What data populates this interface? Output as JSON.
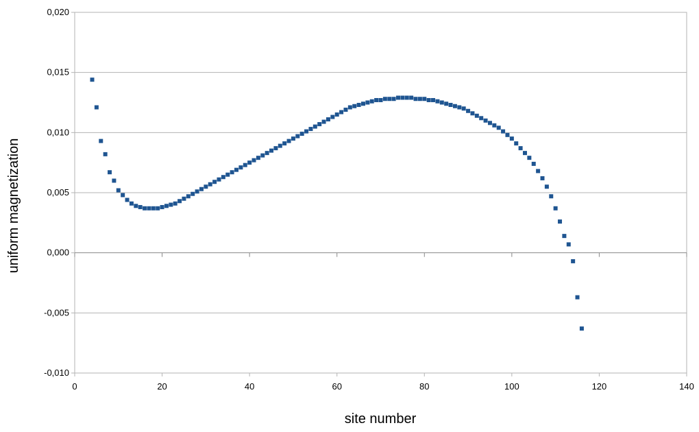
{
  "chart_data": {
    "type": "scatter",
    "title": "",
    "xlabel": "site number",
    "ylabel": "uniform magnetization",
    "xlim": [
      0,
      140
    ],
    "ylim": [
      -0.01,
      0.02
    ],
    "x_ticks": [
      "0",
      "20",
      "40",
      "60",
      "80",
      "100",
      "120",
      "140"
    ],
    "y_ticks": [
      "-0,010",
      "-0,005",
      "0,000",
      "0,005",
      "0,010",
      "0,015",
      "0,020"
    ],
    "grid": "horizontal",
    "legend": "none",
    "marker_color": "#1f5591",
    "series": [
      {
        "x": [
          4,
          5,
          6,
          7,
          8,
          9,
          10,
          11,
          12,
          13,
          14,
          15,
          16,
          17,
          18,
          19,
          20,
          21,
          22,
          23,
          24,
          25,
          26,
          27,
          28,
          29,
          30,
          31,
          32,
          33,
          34,
          35,
          36,
          37,
          38,
          39,
          40,
          41,
          42,
          43,
          44,
          45,
          46,
          47,
          48,
          49,
          50,
          51,
          52,
          53,
          54,
          55,
          56,
          57,
          58,
          59,
          60,
          61,
          62,
          63,
          64,
          65,
          66,
          67,
          68,
          69,
          70,
          71,
          72,
          73,
          74,
          75,
          76,
          77,
          78,
          79,
          80,
          81,
          82,
          83,
          84,
          85,
          86,
          87,
          88,
          89,
          90,
          91,
          92,
          93,
          94,
          95,
          96,
          97,
          98,
          99,
          100,
          101,
          102,
          103,
          104,
          105,
          106,
          107,
          108,
          109,
          110,
          111,
          112,
          113,
          114,
          115,
          116
        ],
        "y": [
          0.0144,
          0.0121,
          0.0093,
          0.0082,
          0.0067,
          0.006,
          0.0052,
          0.0048,
          0.0044,
          0.0041,
          0.0039,
          0.0038,
          0.0037,
          0.0037,
          0.0037,
          0.0037,
          0.0038,
          0.0039,
          0.004,
          0.0041,
          0.0043,
          0.0045,
          0.0047,
          0.0049,
          0.0051,
          0.0053,
          0.0055,
          0.0057,
          0.0059,
          0.0061,
          0.0063,
          0.0065,
          0.0067,
          0.0069,
          0.0071,
          0.0073,
          0.0075,
          0.0077,
          0.0079,
          0.0081,
          0.0083,
          0.0085,
          0.0087,
          0.0089,
          0.0091,
          0.0093,
          0.0095,
          0.0097,
          0.0099,
          0.0101,
          0.0103,
          0.0105,
          0.0107,
          0.0109,
          0.0111,
          0.0113,
          0.0115,
          0.0117,
          0.0119,
          0.0121,
          0.0122,
          0.0123,
          0.0124,
          0.0125,
          0.0126,
          0.0127,
          0.0127,
          0.0128,
          0.0128,
          0.0128,
          0.0129,
          0.0129,
          0.0129,
          0.0129,
          0.0128,
          0.0128,
          0.0128,
          0.0127,
          0.0127,
          0.0126,
          0.0125,
          0.0124,
          0.0123,
          0.0122,
          0.0121,
          0.012,
          0.0118,
          0.0116,
          0.0114,
          0.0112,
          0.011,
          0.0108,
          0.0106,
          0.0104,
          0.0101,
          0.0098,
          0.0095,
          0.0091,
          0.0087,
          0.0083,
          0.0079,
          0.0074,
          0.0068,
          0.0062,
          0.0055,
          0.0047,
          0.0037,
          0.0026,
          0.0014,
          0.0007,
          -0.0007,
          -0.0037,
          -0.0063
        ]
      }
    ]
  }
}
